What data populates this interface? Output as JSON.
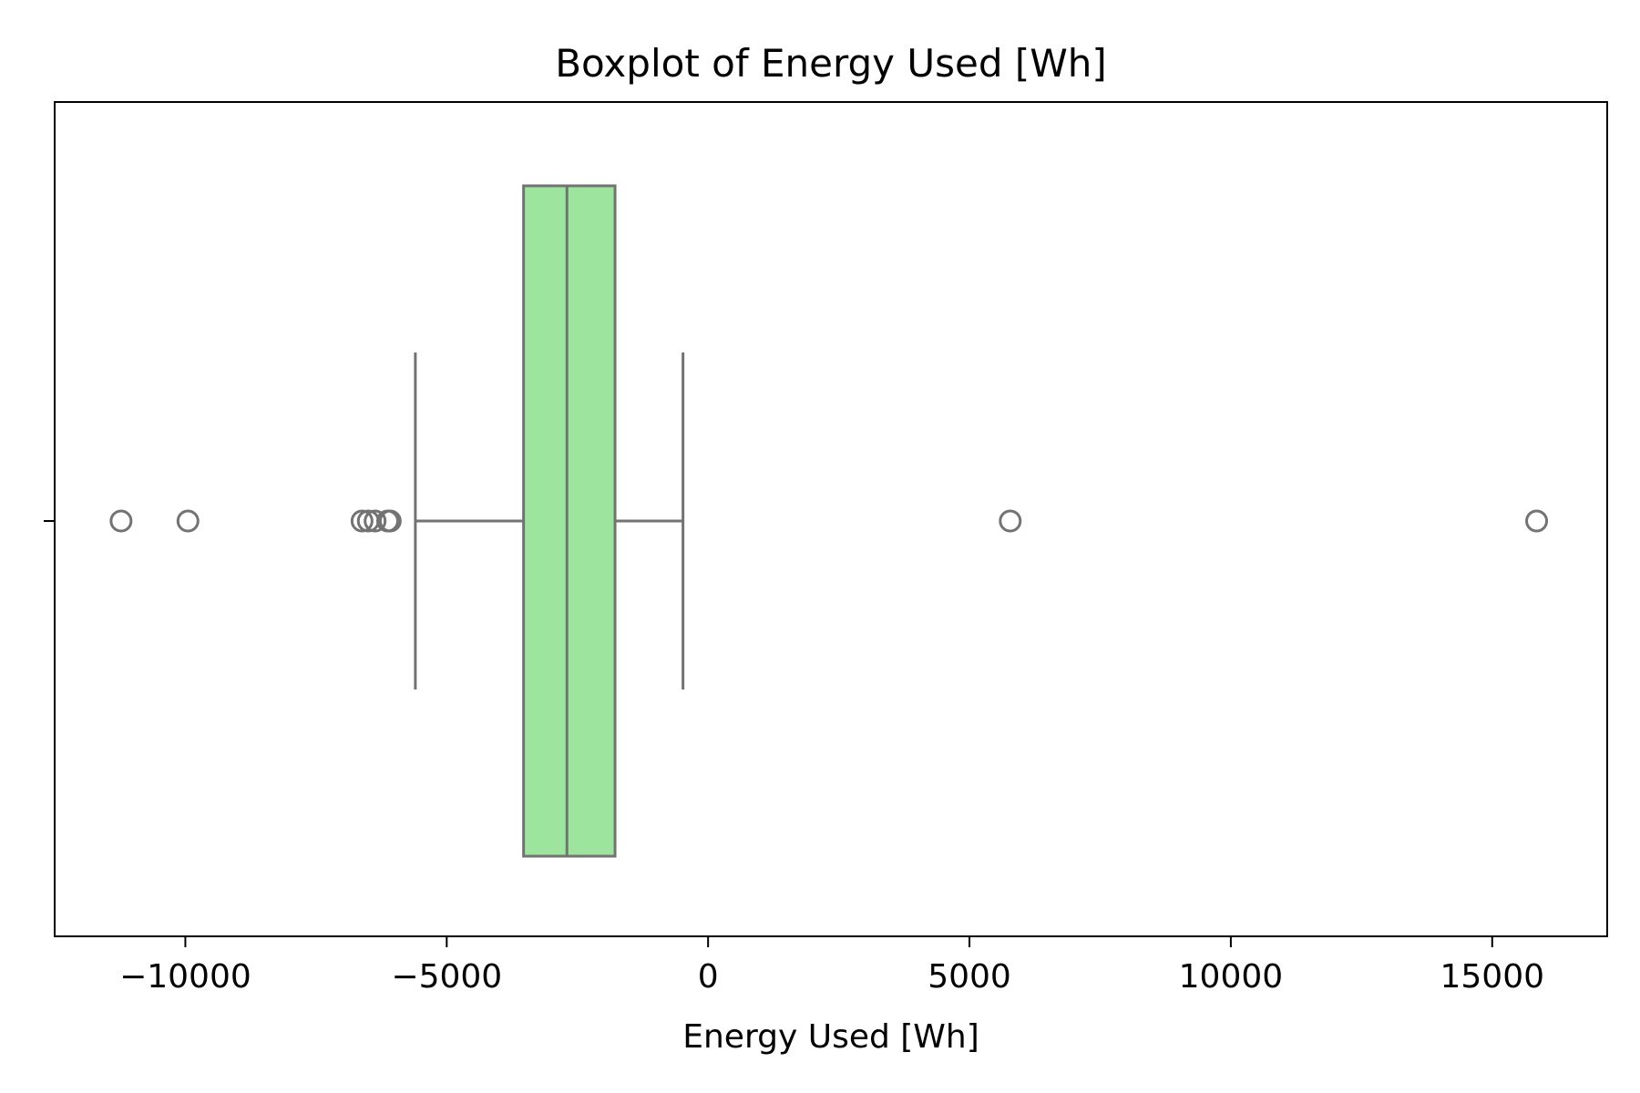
{
  "chart_data": {
    "type": "boxplot",
    "orientation": "horizontal",
    "title": "Boxplot of Energy Used [Wh]",
    "xlabel": "Energy Used [Wh]",
    "ylabel": "",
    "xlim": [
      -12500,
      17200
    ],
    "x_ticks": [
      -10000,
      -5000,
      0,
      5000,
      10000,
      15000
    ],
    "x_tick_labels": [
      "−10000",
      "−5000",
      "0",
      "5000",
      "10000",
      "15000"
    ],
    "grid": false,
    "box": {
      "whisker_low": -5600,
      "q1": -3530,
      "median": -2700,
      "q3": -1780,
      "whisker_high": -480
    },
    "outliers": [
      -11230,
      -9950,
      -6620,
      -6500,
      -6370,
      -6130,
      -6080,
      5780,
      15850
    ],
    "colors": {
      "box_fill": "#9de49e",
      "line": "#737373",
      "axes": "#000000"
    }
  }
}
